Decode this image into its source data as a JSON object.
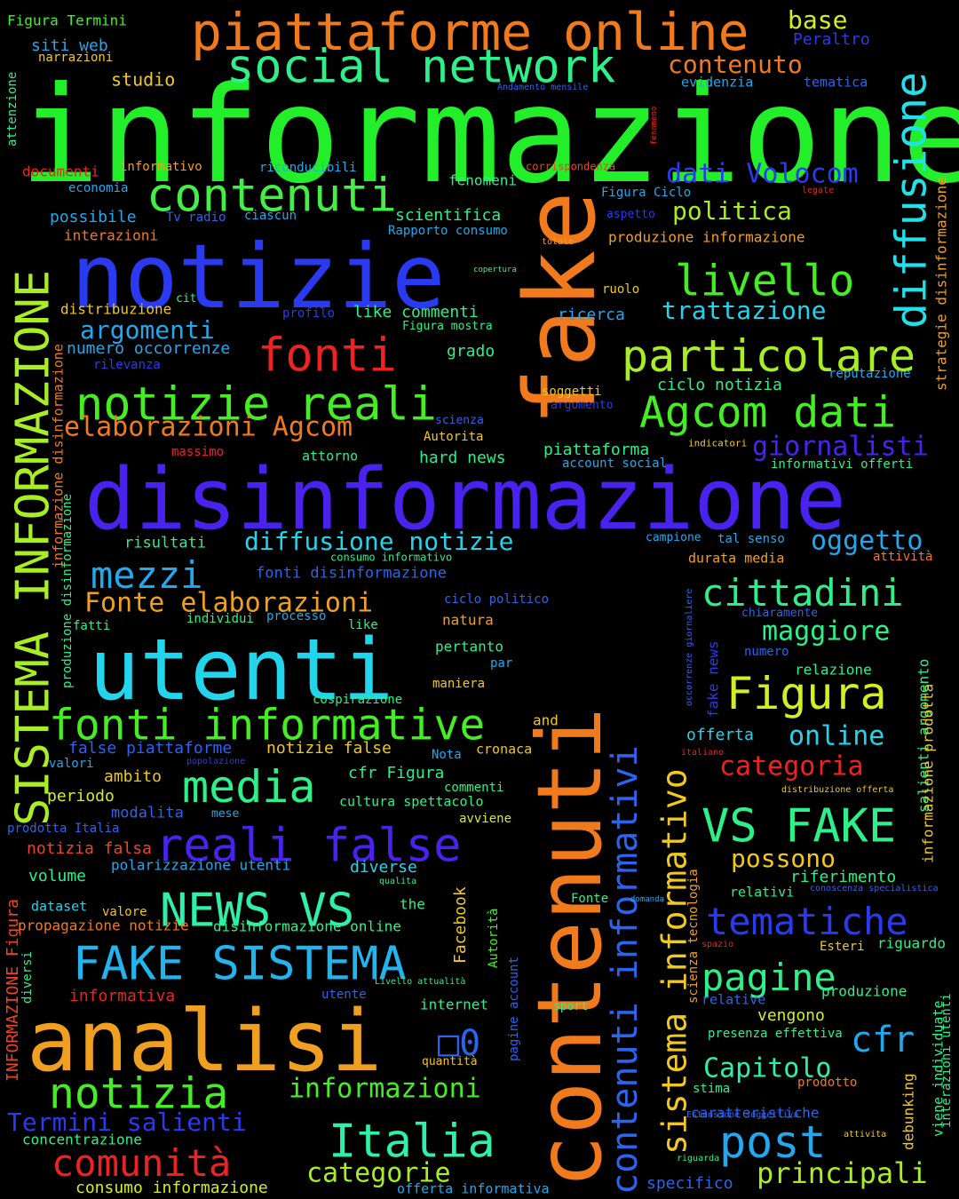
{
  "background": "#000000",
  "words": [
    {
      "text": "informazione",
      "color": "#22ee2a"
    },
    {
      "text": "contenuti",
      "color": "#f07a1c"
    },
    {
      "text": "fake",
      "color": "#f07a1c"
    },
    {
      "text": "disinformazione",
      "color": "#4a22ee"
    },
    {
      "text": "notizie",
      "color": "#2a3af0"
    },
    {
      "text": "utenti",
      "color": "#22d4ec"
    },
    {
      "text": "analisi",
      "color": "#f0a020"
    },
    {
      "text": "SISTEMA INFORMAZIONE",
      "color": "#a8ee22"
    },
    {
      "text": "piattaforme online",
      "color": "#f07a1c"
    },
    {
      "text": "social network",
      "color": "#2ef08a"
    },
    {
      "text": "contenuti",
      "color": "#44ee44"
    },
    {
      "text": "diffusione",
      "color": "#22e0e8"
    },
    {
      "text": "notizie reali",
      "color": "#44ee22"
    },
    {
      "text": "fonti",
      "color": "#ee2222"
    },
    {
      "text": "particolare",
      "color": "#a8ee22"
    },
    {
      "text": "Agcom dati",
      "color": "#44ee22"
    },
    {
      "text": "livello",
      "color": "#44ee22"
    },
    {
      "text": "fonti informative",
      "color": "#44ee22"
    },
    {
      "text": "reali false",
      "color": "#4a22ee"
    },
    {
      "text": "NEWS VS",
      "color": "#2ef0a8"
    },
    {
      "text": "FAKE SISTEMA",
      "color": "#22b4ec"
    },
    {
      "text": "VS FAKE",
      "color": "#2ef08a"
    },
    {
      "text": "Figura",
      "color": "#d4ee22"
    },
    {
      "text": "cittadini",
      "color": "#2ef08a"
    },
    {
      "text": "sistema informativo",
      "color": "#f0c820"
    },
    {
      "text": "contenuti informativi",
      "color": "#2a64f0"
    },
    {
      "text": "tematiche",
      "color": "#2a3af0"
    },
    {
      "text": "pagine",
      "color": "#2ef08a"
    },
    {
      "text": "post",
      "color": "#22a8ec"
    },
    {
      "text": "notizia",
      "color": "#44ee22"
    },
    {
      "text": "Italia",
      "color": "#2ef0a8"
    },
    {
      "text": "comunità",
      "color": "#ee2222"
    },
    {
      "text": "media",
      "color": "#2ef08a"
    },
    {
      "text": "mezzi",
      "color": "#22a8ec"
    },
    {
      "text": "Termini salienti",
      "color": "#2a3af0"
    },
    {
      "text": "cfr",
      "color": "#22a8ec"
    },
    {
      "text": "Capitolo",
      "color": "#2ef0a8"
    },
    {
      "text": "principali",
      "color": "#a8ee22"
    },
    {
      "text": "informazioni",
      "color": "#44ee22"
    },
    {
      "text": "categorie",
      "color": "#a8ee22"
    },
    {
      "text": "elaborazioni Agcom",
      "color": "#f07a1c"
    },
    {
      "text": "Fonte elaborazioni",
      "color": "#f0a020"
    },
    {
      "text": "giornalisti",
      "color": "#4a22ee"
    },
    {
      "text": "diffusione notizie",
      "color": "#22d4ec"
    },
    {
      "text": "oggetto",
      "color": "#22a8ec"
    },
    {
      "text": "maggiore",
      "color": "#2ef08a"
    },
    {
      "text": "online",
      "color": "#22d4ec"
    },
    {
      "text": "categoria",
      "color": "#ee2222"
    },
    {
      "text": "possono",
      "color": "#f0c820"
    },
    {
      "text": "trattazione",
      "color": "#22d4ec"
    },
    {
      "text": "argomenti",
      "color": "#22a8ec"
    },
    {
      "text": "dati Volocom",
      "color": "#2a3af0"
    },
    {
      "text": "politica",
      "color": "#a8ee22"
    },
    {
      "text": "contenuto",
      "color": "#f07a1c"
    },
    {
      "text": "base",
      "color": "#d4ee22"
    },
    {
      "text": "Peraltro",
      "color": "#2a3af0"
    },
    {
      "text": "evidenzia",
      "color": "#22a8ec"
    },
    {
      "text": "tematica",
      "color": "#2a64f0"
    },
    {
      "text": "Figura Termini",
      "color": "#44ee22"
    },
    {
      "text": "siti web",
      "color": "#22a8ec"
    },
    {
      "text": "narrazioni",
      "color": "#f0c820"
    },
    {
      "text": "studio",
      "color": "#f0c820"
    },
    {
      "text": "attenzione",
      "color": "#2ef08a"
    },
    {
      "text": "documenti",
      "color": "#ee2222"
    },
    {
      "text": "informativo",
      "color": "#f0a020"
    },
    {
      "text": "riconducibili",
      "color": "#22a8ec"
    },
    {
      "text": "economia",
      "color": "#22a8ec"
    },
    {
      "text": "fenomeni",
      "color": "#2ef08a"
    },
    {
      "text": "corrispondenza",
      "color": "#ee4422"
    },
    {
      "text": "possibile",
      "color": "#22a8ec"
    },
    {
      "text": "Tv radio",
      "color": "#2a64f0"
    },
    {
      "text": "ciascun",
      "color": "#22a8ec"
    },
    {
      "text": "scientifica",
      "color": "#2ef08a"
    },
    {
      "text": "Rapporto consumo",
      "color": "#22a8ec"
    },
    {
      "text": "interazioni",
      "color": "#f07a1c"
    },
    {
      "text": "Figura Ciclo",
      "color": "#22a8ec"
    },
    {
      "text": "aspetto",
      "color": "#2a3af0"
    },
    {
      "text": "legate",
      "color": "#ee2222"
    },
    {
      "text": "produzione informazione",
      "color": "#f0a020"
    },
    {
      "text": "totale",
      "color": "#f0a020"
    },
    {
      "text": "copertura",
      "color": "#2ef08a"
    },
    {
      "text": "ruolo",
      "color": "#f0c820"
    },
    {
      "text": "cit",
      "color": "#2ef08a"
    },
    {
      "text": "distribuzione",
      "color": "#f0c820"
    },
    {
      "text": "profilo",
      "color": "#2a3af0"
    },
    {
      "text": "like commenti",
      "color": "#2ef08a"
    },
    {
      "text": "ricerca",
      "color": "#22a8ec"
    },
    {
      "text": "Figura mostra",
      "color": "#2ef08a"
    },
    {
      "text": "numero occorrenze",
      "color": "#22a8ec"
    },
    {
      "text": "rilevanza",
      "color": "#2a3af0"
    },
    {
      "text": "grado",
      "color": "#2ef08a"
    },
    {
      "text": "reputazione",
      "color": "#22a8ec"
    },
    {
      "text": "soggetti",
      "color": "#f0c820"
    },
    {
      "text": "argomento",
      "color": "#2a3af0"
    },
    {
      "text": "ciclo notizia",
      "color": "#2ef08a"
    },
    {
      "text": "scienza",
      "color": "#2a64f0"
    },
    {
      "text": "Autorita",
      "color": "#f0c820"
    },
    {
      "text": "massimo",
      "color": "#ee2222"
    },
    {
      "text": "attorno",
      "color": "#2ef08a"
    },
    {
      "text": "hard news",
      "color": "#2ef08a"
    },
    {
      "text": "piattaforma",
      "color": "#2ef08a"
    },
    {
      "text": "account social",
      "color": "#22a8ec"
    },
    {
      "text": "indicatori",
      "color": "#f0c820"
    },
    {
      "text": "informativi offerti",
      "color": "#2ef08a"
    },
    {
      "text": "risultati",
      "color": "#2ef08a"
    },
    {
      "text": "consumo informativo",
      "color": "#2ef08a"
    },
    {
      "text": "campione",
      "color": "#22a8ec"
    },
    {
      "text": "tal senso",
      "color": "#22a8ec"
    },
    {
      "text": "durata media",
      "color": "#f0a020"
    },
    {
      "text": "attività",
      "color": "#f07a1c"
    },
    {
      "text": "fonti disinformazione",
      "color": "#2a64f0"
    },
    {
      "text": "ciclo politico",
      "color": "#2a64f0"
    },
    {
      "text": "chiaramente",
      "color": "#2a64f0"
    },
    {
      "text": "fatti",
      "color": "#2ef08a"
    },
    {
      "text": "individui",
      "color": "#2ef08a"
    },
    {
      "text": "processo",
      "color": "#22a8ec"
    },
    {
      "text": "like",
      "color": "#2ef08a"
    },
    {
      "text": "natura",
      "color": "#f0a020"
    },
    {
      "text": "numero",
      "color": "#2a64f0"
    },
    {
      "text": "pertanto",
      "color": "#2ef08a"
    },
    {
      "text": "par",
      "color": "#22a8ec"
    },
    {
      "text": "relazione",
      "color": "#2ef08a"
    },
    {
      "text": "maniera",
      "color": "#f0c820"
    },
    {
      "text": "cospirazione",
      "color": "#2ef08a"
    },
    {
      "text": "and",
      "color": "#f0c820"
    },
    {
      "text": "offerta",
      "color": "#22d4ec"
    },
    {
      "text": "false piattaforme",
      "color": "#2a64f0"
    },
    {
      "text": "notizie false",
      "color": "#f0c820"
    },
    {
      "text": "Nota",
      "color": "#22a8ec"
    },
    {
      "text": "cronaca",
      "color": "#f0c820"
    },
    {
      "text": "valori",
      "color": "#22a8ec"
    },
    {
      "text": "popolazione",
      "color": "#2a3af0"
    },
    {
      "text": "cfr Figura",
      "color": "#2ef08a"
    },
    {
      "text": "italiano",
      "color": "#ee2222"
    },
    {
      "text": "ambito",
      "color": "#f0c820"
    },
    {
      "text": "commenti",
      "color": "#2ef08a"
    },
    {
      "text": "periodo",
      "color": "#d4ee22"
    },
    {
      "text": "cultura spettacolo",
      "color": "#2ef08a"
    },
    {
      "text": "distribuzione offerta",
      "color": "#f0c820"
    },
    {
      "text": "modalita",
      "color": "#2a64f0"
    },
    {
      "text": "mese",
      "color": "#22a8ec"
    },
    {
      "text": "avviene",
      "color": "#d4ee22"
    },
    {
      "text": "prodotta Italia",
      "color": "#2a64f0"
    },
    {
      "text": "notizia falsa",
      "color": "#ee4422"
    },
    {
      "text": "polarizzazione utenti",
      "color": "#22a8ec"
    },
    {
      "text": "diverse",
      "color": "#22d4ec"
    },
    {
      "text": "riferimento",
      "color": "#2ef08a"
    },
    {
      "text": "volume",
      "color": "#2ef08a"
    },
    {
      "text": "qualita",
      "color": "#2ef08a"
    },
    {
      "text": "relativi",
      "color": "#2ef08a"
    },
    {
      "text": "conoscenza specialistica",
      "color": "#2a64f0"
    },
    {
      "text": "dataset",
      "color": "#22d4ec"
    },
    {
      "text": "the",
      "color": "#2ef08a"
    },
    {
      "text": "valore",
      "color": "#f0c820"
    },
    {
      "text": "Fonte",
      "color": "#2ef08a"
    },
    {
      "text": "domanda",
      "color": "#22a8ec"
    },
    {
      "text": "propagazione notizie",
      "color": "#f07a1c"
    },
    {
      "text": "disinformazione online",
      "color": "#2ef08a"
    },
    {
      "text": "spazio",
      "color": "#ee2222"
    },
    {
      "text": "Esteri",
      "color": "#f0c820"
    },
    {
      "text": "riguardo",
      "color": "#2ef08a"
    },
    {
      "text": "Livello attualità",
      "color": "#2ef08a"
    },
    {
      "text": "produzione",
      "color": "#2ef08a"
    },
    {
      "text": "informativa",
      "color": "#ee2222"
    },
    {
      "text": "utente",
      "color": "#2a64f0"
    },
    {
      "text": "relative",
      "color": "#2a64f0"
    },
    {
      "text": "internet",
      "color": "#2ef08a"
    },
    {
      "text": "sport",
      "color": "#2ef08a"
    },
    {
      "text": "vengono",
      "color": "#d4ee22"
    },
    {
      "text": "presenza effettiva",
      "color": "#2ef08a"
    },
    {
      "text": "quantità",
      "color": "#f0c820"
    },
    {
      "text": "prodotto",
      "color": "#f07a1c"
    },
    {
      "text": "stima",
      "color": "#2ef08a"
    },
    {
      "text": "caratteristiche",
      "color": "#2a64f0"
    },
    {
      "text": "Estensione soggettiva",
      "color": "#2a64f0"
    },
    {
      "text": "attivita",
      "color": "#f0c820"
    },
    {
      "text": "concentrazione",
      "color": "#2ef08a"
    },
    {
      "text": "riguarda",
      "color": "#2ef08a"
    },
    {
      "text": "consumo informazione",
      "color": "#d4ee22"
    },
    {
      "text": "offerta informativa",
      "color": "#22a8ec"
    },
    {
      "text": "specifico",
      "color": "#2a64f0"
    },
    {
      "text": "Andamento mensile",
      "color": "#2a64f0"
    },
    {
      "text": "fenomeno",
      "color": "#ee2222"
    },
    {
      "text": "strategie disinformazione",
      "color": "#f0a020"
    },
    {
      "text": "informazione disinformazione",
      "color": "#f07a1c"
    },
    {
      "text": "produzione disinformazione",
      "color": "#2ef08a"
    },
    {
      "text": "occorrenze giornaliere",
      "color": "#2a64f0"
    },
    {
      "text": "fake news",
      "color": "#2a3af0"
    },
    {
      "text": "scienza tecnologia",
      "color": "#f0a020"
    },
    {
      "text": "Facebook",
      "color": "#f0c820"
    },
    {
      "text": "Autorità",
      "color": "#44ee22"
    },
    {
      "text": "pagine account",
      "color": "#2a64f0"
    },
    {
      "text": "INFORMAZIONE Figura",
      "color": "#ee4422"
    },
    {
      "text": "diversi",
      "color": "#2ef08a"
    },
    {
      "text": "salienti argomento",
      "color": "#2ef08a"
    },
    {
      "text": "informazione prodotta",
      "color": "#f0c820"
    },
    {
      "text": "viene individuate",
      "color": "#2ef08a"
    },
    {
      "text": "interazioni utenti",
      "color": "#2ef08a"
    },
    {
      "text": "debunking",
      "color": "#f0c820"
    },
    {
      "text": "□0",
      "color": "#2a64f0"
    }
  ]
}
